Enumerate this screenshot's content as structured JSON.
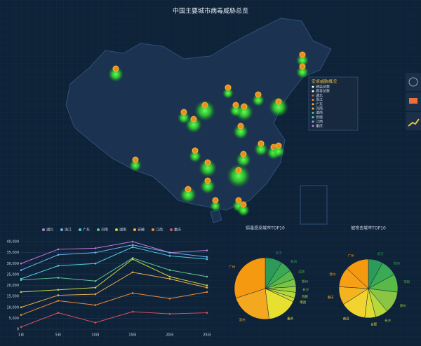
{
  "header": {
    "title": "中国主要城市病毒威胁总览"
  },
  "map": {
    "legend": {
      "title": "安卓威胁概况",
      "items": [
        "感染总数",
        "病毒总数",
        "湖北",
        "浙江",
        "广东",
        "河南",
        "湖南",
        "安徽",
        "江西",
        "重庆"
      ]
    }
  },
  "chart_data": [
    {
      "type": "line",
      "categories": [
        "1日",
        "5日",
        "10日",
        "15日",
        "20日",
        "25日"
      ],
      "ylim": [
        0,
        40000
      ],
      "yticks": [
        0,
        {
          "value": 5000,
          "label": "5,000"
        },
        {
          "value": 10000,
          "label": "10,000"
        },
        {
          "value": 15000,
          "label": "15,000"
        },
        {
          "value": 20000,
          "label": "20,000"
        },
        {
          "value": 25000,
          "label": "25,000"
        },
        {
          "value": 30000,
          "label": "30,000"
        },
        {
          "value": 35000,
          "label": "35,000"
        },
        {
          "value": 40000,
          "label": "40,000"
        }
      ],
      "series": [
        {
          "name": "湖北",
          "color": "#c07bd6",
          "values": [
            30000,
            36500,
            37000,
            40000,
            35000,
            36000
          ]
        },
        {
          "name": "浙江",
          "color": "#6fb0f0",
          "values": [
            27000,
            34000,
            35000,
            38500,
            35000,
            33000
          ]
        },
        {
          "name": "广东",
          "color": "#4fd0e0",
          "values": [
            23000,
            29000,
            30000,
            37500,
            33500,
            32000
          ]
        },
        {
          "name": "河南",
          "color": "#5ec78f",
          "values": [
            22500,
            23500,
            22000,
            32500,
            27000,
            24000
          ]
        },
        {
          "name": "湖南",
          "color": "#c8d44a",
          "values": [
            17000,
            18000,
            19000,
            32000,
            24000,
            20000
          ]
        },
        {
          "name": "安徽",
          "color": "#f0b050",
          "values": [
            10000,
            15500,
            16000,
            26000,
            23000,
            19000
          ]
        },
        {
          "name": "江西",
          "color": "#f08a3a",
          "values": [
            6500,
            13000,
            11000,
            16500,
            14000,
            17000
          ]
        },
        {
          "name": "重庆",
          "color": "#e05060",
          "values": [
            1000,
            7500,
            3000,
            8000,
            7000,
            7500
          ]
        }
      ]
    },
    {
      "type": "pie",
      "title": "病毒感染城市TOP10",
      "categories": [
        "武汉",
        "杭州",
        "深圳",
        "郑州",
        "长沙",
        "合肥",
        "南昌",
        "重庆",
        "温州",
        "广州"
      ],
      "values": [
        9,
        6,
        5,
        4,
        3,
        3,
        2,
        16,
        22,
        30
      ],
      "colors": [
        "#2e9a5a",
        "#3aaa55",
        "#58b848",
        "#79c440",
        "#9bcf3c",
        "#b7d83a",
        "#cbe03a",
        "#e8e030",
        "#f4a820",
        "#f59a10"
      ]
    },
    {
      "type": "pie",
      "title": "被攻击城市TOP10",
      "categories": [
        "武汉",
        "杭州",
        "深圳",
        "郑州",
        "长沙",
        "合肥",
        "南昌",
        "重庆",
        "温州",
        "广州"
      ],
      "values": [
        8,
        9,
        10,
        12,
        7,
        6,
        14,
        10,
        11,
        13
      ],
      "colors": [
        "#2e9a5a",
        "#3aaa55",
        "#58b848",
        "#8ac644",
        "#b7d83a",
        "#e0dc32",
        "#f2d430",
        "#f4b420",
        "#f6a018",
        "#f59a10"
      ]
    }
  ]
}
